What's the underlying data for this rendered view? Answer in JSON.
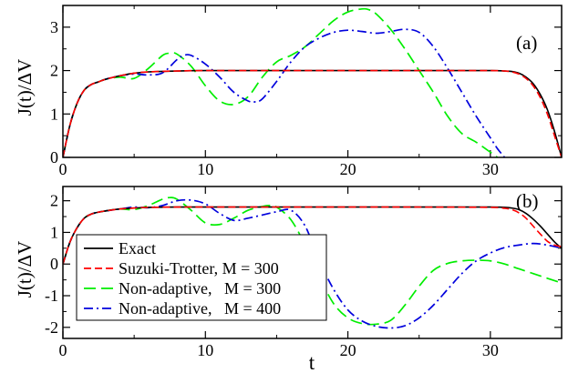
{
  "chart_data": [
    {
      "type": "line",
      "panel_label": "(a)",
      "ylabel": "J(t)/ΔV",
      "xlim": [
        0,
        35
      ],
      "ylim": [
        0,
        3.5
      ],
      "xticks": [
        0,
        10,
        20,
        30
      ],
      "yticks": [
        0,
        1,
        2,
        3
      ],
      "series": [
        {
          "name": "Exact",
          "color": "#000000",
          "dash": "solid",
          "x": [
            0,
            0.5,
            1,
            1.5,
            2,
            2.5,
            3,
            4,
            5,
            6,
            8,
            10,
            15,
            20,
            25,
            30,
            31,
            31.5,
            32,
            32.5,
            33,
            33.5,
            34,
            34.5,
            35
          ],
          "y": [
            0,
            0.75,
            1.25,
            1.55,
            1.68,
            1.74,
            1.8,
            1.88,
            1.94,
            1.97,
            1.99,
            2.0,
            2.0,
            2.0,
            2.0,
            2.0,
            1.99,
            1.98,
            1.94,
            1.85,
            1.7,
            1.45,
            1.1,
            0.6,
            0.0
          ]
        },
        {
          "name": "Suzuki-Trotter, M = 300",
          "color": "#ff0000",
          "dash": "dashed",
          "x": [
            0,
            0.5,
            1,
            1.5,
            2,
            2.5,
            3,
            4,
            5,
            6,
            8,
            10,
            15,
            20,
            25,
            30,
            31,
            31.5,
            32,
            32.5,
            33,
            33.5,
            34,
            34.5,
            35
          ],
          "y": [
            0,
            0.75,
            1.25,
            1.55,
            1.68,
            1.74,
            1.8,
            1.88,
            1.94,
            1.97,
            1.99,
            2.0,
            2.0,
            2.0,
            2.0,
            2.0,
            1.99,
            1.97,
            1.92,
            1.82,
            1.65,
            1.38,
            1.0,
            0.5,
            0.0
          ]
        },
        {
          "name": "Non-adaptive,   M = 300",
          "color": "#00ee00",
          "dash": "long-dash",
          "x": [
            0,
            0.5,
            1,
            1.5,
            2,
            2.5,
            3,
            4,
            5,
            6,
            7,
            7.5,
            8,
            9,
            10,
            11,
            12,
            13,
            14,
            15,
            16,
            17,
            18,
            19,
            20,
            21,
            21.5,
            22,
            23,
            24,
            25,
            26,
            27,
            28,
            29,
            30,
            30.5
          ],
          "y": [
            0,
            0.75,
            1.25,
            1.55,
            1.68,
            1.74,
            1.8,
            1.85,
            1.82,
            2.05,
            2.35,
            2.4,
            2.38,
            2.1,
            1.65,
            1.3,
            1.22,
            1.4,
            1.85,
            2.2,
            2.35,
            2.55,
            2.85,
            3.15,
            3.35,
            3.42,
            3.4,
            3.3,
            2.95,
            2.5,
            2.0,
            1.5,
            0.95,
            0.55,
            0.35,
            0.12,
            0.0
          ]
        },
        {
          "name": "Non-adaptive,   M = 400",
          "color": "#0000dd",
          "dash": "dash-dot",
          "x": [
            0,
            0.5,
            1,
            1.5,
            2,
            2.5,
            3,
            4,
            5,
            6,
            7,
            8,
            8.5,
            9,
            10,
            11,
            12,
            13,
            13.5,
            14,
            15,
            16,
            17,
            18,
            19,
            20,
            21,
            22,
            23,
            24,
            25,
            26,
            27,
            28,
            29,
            30,
            30.5,
            31
          ],
          "y": [
            0,
            0.75,
            1.25,
            1.55,
            1.68,
            1.74,
            1.8,
            1.88,
            1.92,
            1.9,
            1.95,
            2.25,
            2.35,
            2.35,
            2.15,
            1.85,
            1.5,
            1.3,
            1.28,
            1.35,
            1.75,
            2.2,
            2.55,
            2.75,
            2.88,
            2.93,
            2.9,
            2.86,
            2.9,
            2.95,
            2.88,
            2.55,
            2.05,
            1.5,
            0.95,
            0.45,
            0.2,
            0.0
          ]
        }
      ]
    },
    {
      "type": "line",
      "panel_label": "(b)",
      "xlabel": "t",
      "ylabel": "J(t)/ΔV",
      "xlim": [
        0,
        35
      ],
      "ylim": [
        -2.35,
        2.45
      ],
      "xticks": [
        0,
        10,
        20,
        30
      ],
      "yticks": [
        -2,
        -1,
        0,
        1,
        2
      ],
      "legend_position": "lower-left",
      "series": [
        {
          "name": "Exact",
          "color": "#000000",
          "dash": "solid",
          "x": [
            0,
            0.5,
            1,
            1.5,
            2,
            2.5,
            3,
            4,
            5,
            6,
            8,
            10,
            15,
            20,
            25,
            30,
            31,
            31.5,
            32,
            32.5,
            33,
            33.5,
            34,
            34.5,
            35
          ],
          "y": [
            0,
            0.7,
            1.15,
            1.45,
            1.58,
            1.64,
            1.68,
            1.74,
            1.77,
            1.79,
            1.8,
            1.8,
            1.8,
            1.8,
            1.8,
            1.8,
            1.79,
            1.77,
            1.72,
            1.6,
            1.42,
            1.2,
            0.95,
            0.7,
            0.5
          ]
        },
        {
          "name": "Suzuki-Trotter, M = 300",
          "color": "#ff0000",
          "dash": "dashed",
          "x": [
            0,
            0.5,
            1,
            1.5,
            2,
            2.5,
            3,
            4,
            5,
            6,
            8,
            10,
            15,
            20,
            25,
            30,
            31,
            31.5,
            32,
            32.5,
            33,
            33.5,
            34,
            34.5,
            35
          ],
          "y": [
            0,
            0.7,
            1.15,
            1.45,
            1.58,
            1.64,
            1.68,
            1.74,
            1.77,
            1.79,
            1.8,
            1.8,
            1.8,
            1.8,
            1.8,
            1.79,
            1.76,
            1.72,
            1.62,
            1.45,
            1.2,
            0.95,
            0.72,
            0.6,
            0.55
          ]
        },
        {
          "name": "Non-adaptive,   M = 300",
          "color": "#00ee00",
          "dash": "long-dash",
          "x": [
            0,
            0.5,
            1,
            1.5,
            2,
            2.5,
            3,
            4,
            5,
            6,
            7,
            7.5,
            8,
            9,
            10,
            11,
            12,
            13,
            14,
            14.5,
            15,
            16,
            17,
            18,
            19,
            20,
            21,
            22,
            23,
            24,
            25,
            26,
            27,
            28,
            29,
            30,
            31,
            32,
            33,
            34,
            35
          ],
          "y": [
            0,
            0.7,
            1.15,
            1.45,
            1.58,
            1.64,
            1.68,
            1.74,
            1.72,
            1.85,
            2.05,
            2.1,
            2.05,
            1.7,
            1.3,
            1.25,
            1.45,
            1.7,
            1.82,
            1.85,
            1.8,
            1.4,
            0.6,
            -0.4,
            -1.25,
            -1.7,
            -1.88,
            -1.9,
            -1.78,
            -1.3,
            -0.7,
            -0.2,
            0.02,
            0.1,
            0.12,
            0.1,
            0.0,
            -0.15,
            -0.3,
            -0.45,
            -0.6
          ]
        },
        {
          "name": "Non-adaptive,   M = 400",
          "color": "#0000dd",
          "dash": "dash-dot",
          "x": [
            0,
            0.5,
            1,
            1.5,
            2,
            2.5,
            3,
            4,
            5,
            6,
            7,
            8,
            9,
            10,
            11,
            12,
            13,
            14,
            15,
            16,
            17,
            18,
            19,
            20,
            21,
            22,
            23,
            24,
            25,
            26,
            27,
            28,
            29,
            30,
            31,
            32,
            33,
            34,
            35
          ],
          "y": [
            0,
            0.7,
            1.15,
            1.45,
            1.58,
            1.64,
            1.68,
            1.74,
            1.8,
            1.78,
            1.85,
            2.0,
            2.02,
            1.9,
            1.6,
            1.38,
            1.45,
            1.55,
            1.65,
            1.7,
            1.2,
            0.1,
            -0.8,
            -1.45,
            -1.8,
            -1.97,
            -2.02,
            -1.95,
            -1.7,
            -1.3,
            -0.8,
            -0.3,
            0.1,
            0.35,
            0.52,
            0.6,
            0.65,
            0.6,
            0.5
          ]
        }
      ]
    }
  ]
}
